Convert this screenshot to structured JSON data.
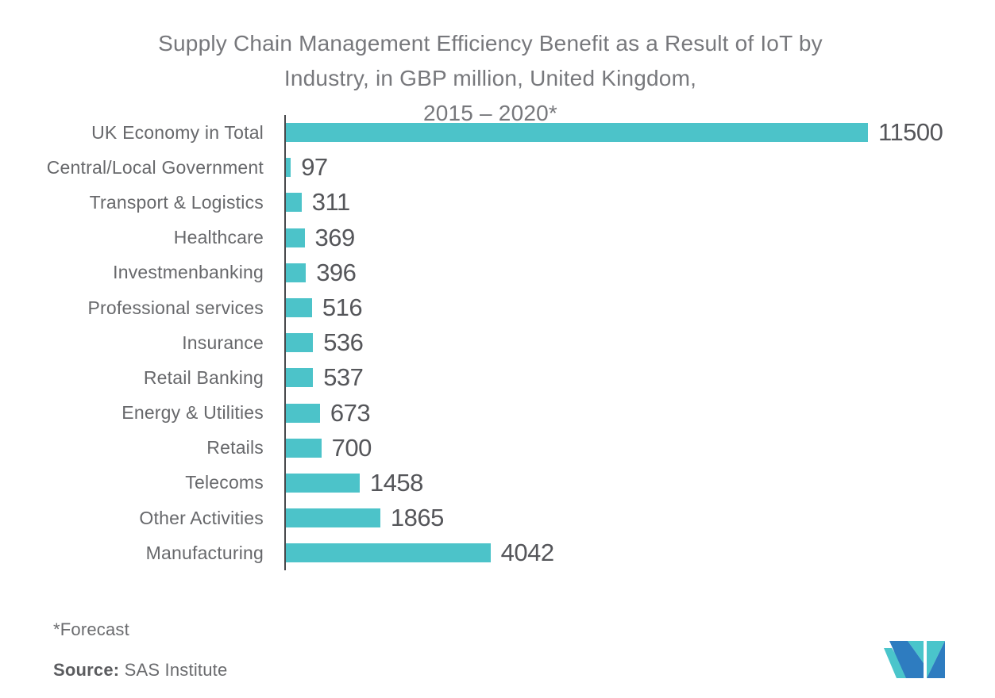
{
  "title": {
    "line1": "Supply Chain Management Efficiency Benefit as a Result of IoT by",
    "line2": "Industry, in GBP million, United Kingdom,",
    "line3": "2015 – 2020*"
  },
  "chart_data": {
    "type": "bar",
    "orientation": "horizontal",
    "title": "Supply Chain Management Efficiency Benefit as a Result of IoT by Industry, in GBP million, United Kingdom, 2015 – 2020*",
    "categories": [
      "UK Economy in Total",
      "Central/Local Government",
      "Transport & Logistics",
      "Healthcare",
      "Investmenbanking",
      "Professional services",
      "Insurance",
      "Retail Banking",
      "Energy & Utilities",
      "Retails",
      "Telecoms",
      "Other Activities",
      "Manufacturing"
    ],
    "values": [
      11500,
      97,
      311,
      369,
      396,
      516,
      536,
      537,
      673,
      700,
      1458,
      1865,
      4042
    ],
    "xlim": [
      0,
      11500
    ],
    "xlabel": "",
    "ylabel": "",
    "grid": false,
    "legend": false,
    "value_labels_shown": true,
    "bar_color": "#4CC3C9"
  },
  "footnotes": {
    "forecast": "*Forecast",
    "source_label": "Source:",
    "source_value": " SAS Institute"
  },
  "logo": {
    "name": "mordor-intelligence-logo"
  },
  "colors": {
    "background": "#FFFFFF",
    "bar": "#4CC3C9",
    "title_text": "#77787C",
    "label_text": "#67686B",
    "value_text": "#55565A",
    "axis_line": "#47484B",
    "footnote_text": "#6A6B6E",
    "logo_teal": "#4AC5CB",
    "logo_blue": "#2E7CC0"
  }
}
